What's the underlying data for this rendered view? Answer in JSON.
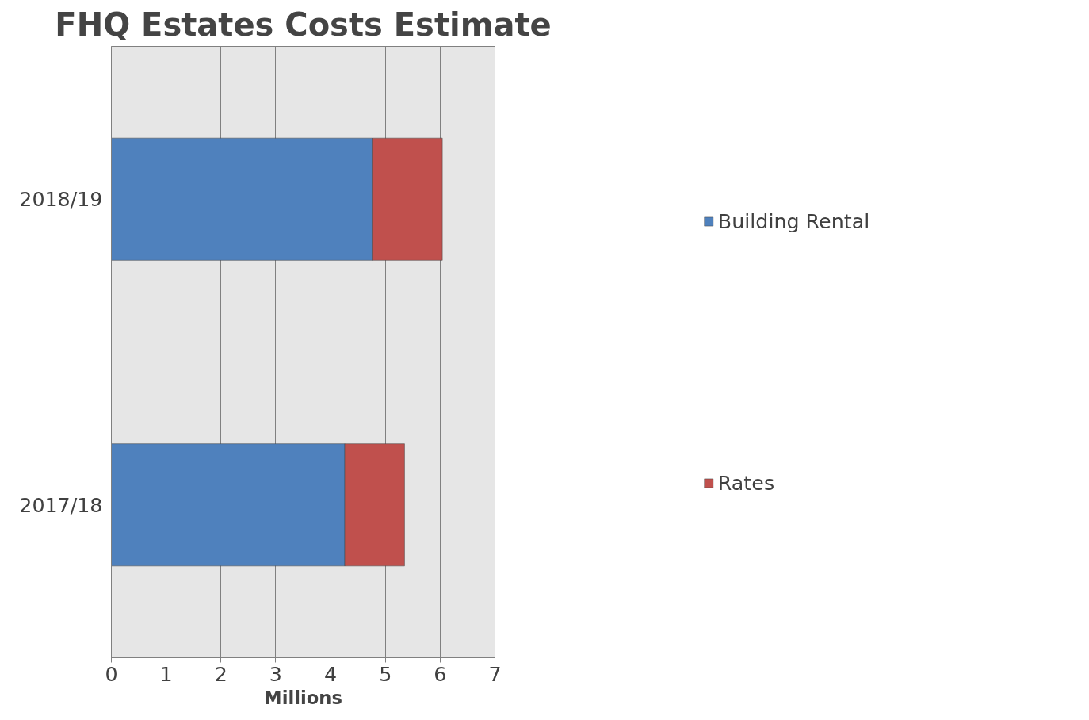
{
  "chart_data": {
    "type": "bar",
    "orientation": "horizontal",
    "stacked": true,
    "title": "FHQ Estates Costs Estimate",
    "xlabel": "Millions",
    "categories": [
      "2018/19",
      "2017/18"
    ],
    "series": [
      {
        "name": "Building Rental",
        "color": "#4f81bd",
        "values": [
          4.76,
          4.26
        ]
      },
      {
        "name": "Rates",
        "color": "#c0504d",
        "values": [
          1.28,
          1.09
        ]
      }
    ],
    "xlim": [
      0,
      7
    ],
    "xticks": [
      0,
      1,
      2,
      3,
      4,
      5,
      6,
      7
    ],
    "grid": "x",
    "legend": "right"
  }
}
